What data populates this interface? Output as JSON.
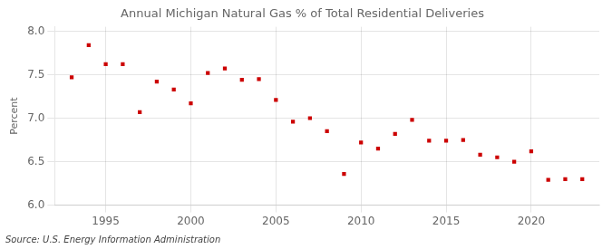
{
  "chart_data": {
    "type": "scatter",
    "title": "Annual Michigan Natural Gas % of Total Residential Deliveries",
    "y_label": "Percent",
    "source": "Source: U.S. Energy Information Administration",
    "x": [
      1993,
      1994,
      1995,
      1996,
      1997,
      1998,
      1999,
      2000,
      2001,
      2002,
      2003,
      2004,
      2005,
      2006,
      2007,
      2008,
      2009,
      2010,
      2011,
      2012,
      2013,
      2014,
      2015,
      2016,
      2017,
      2018,
      2019,
      2020,
      2021,
      2022,
      2023
    ],
    "values": [
      7.47,
      7.84,
      7.62,
      7.62,
      7.07,
      7.42,
      7.33,
      7.17,
      7.52,
      7.57,
      7.44,
      7.45,
      7.21,
      6.96,
      7.0,
      6.85,
      6.36,
      6.72,
      6.65,
      6.82,
      6.98,
      6.74,
      6.74,
      6.75,
      6.58,
      6.55,
      6.5,
      6.62,
      6.29,
      6.3,
      6.3
    ],
    "color": "#cc0000",
    "marker": "square",
    "xlim": [
      1992,
      2024
    ],
    "xticks": [
      1995,
      2000,
      2005,
      2010,
      2015,
      2020
    ],
    "ylim": [
      6.0,
      8.05
    ],
    "yticks": [
      {
        "value": 6.0,
        "label": "6.0"
      },
      6.5,
      {
        "value": 7.0,
        "label": "7.0"
      },
      7.5,
      {
        "value": 8.0,
        "label": "8.0"
      }
    ],
    "grid": true,
    "legend": false
  }
}
